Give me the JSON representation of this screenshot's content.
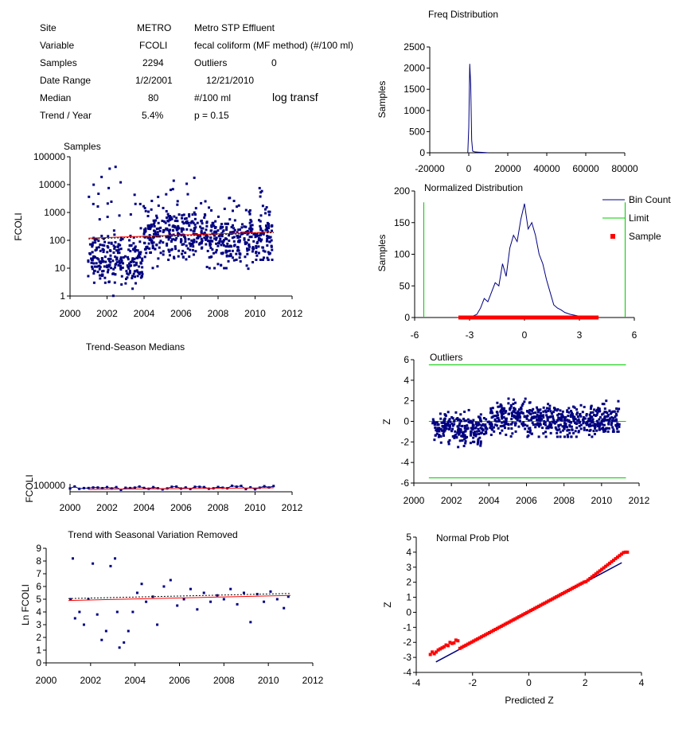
{
  "summary": {
    "site_label": "Site",
    "site_code": "METRO",
    "site_name": "Metro STP Effluent",
    "variable_label": "Variable",
    "variable_code": "FCOLI",
    "variable_name": "fecal coliform (MF method) (#/100 ml)",
    "samples_label": "Samples",
    "samples_value": "2294",
    "outliers_label": "Outliers",
    "outliers_value": "0",
    "date_range_label": "Date Range",
    "date_start": "1/2/2001",
    "date_end": "12/21/2010",
    "median_label": "Median",
    "median_value": "80",
    "median_unit": "#/100 ml",
    "transform_note": "log transf",
    "trend_label": "Trend / Year",
    "trend_value": "5.4%",
    "p_value": "p = 0.15"
  },
  "colors": {
    "data": "#000080",
    "trend": "#ff0000",
    "limit": "#00cc00",
    "sample": "#ff0000"
  },
  "chart_data": [
    {
      "id": "samples",
      "type": "scatter",
      "title": "Samples",
      "ylabel": "FCOLI",
      "y_scale": "log",
      "ylim": [
        1,
        100000
      ],
      "xlim": [
        2000,
        2012
      ],
      "xticks": [
        "2000",
        "2002",
        "2004",
        "2006",
        "2008",
        "2010",
        "2012"
      ],
      "yticks": [
        "1",
        "10",
        "100",
        "1000",
        "10000",
        "100000"
      ],
      "year_clusters": [
        {
          "year": 2001,
          "median": 25,
          "min": 3,
          "max": 20000
        },
        {
          "year": 2002,
          "median": 20,
          "min": 1,
          "max": 60000
        },
        {
          "year": 2003,
          "median": 15,
          "min": 1,
          "max": 60000
        },
        {
          "year": 2004,
          "median": 120,
          "min": 10,
          "max": 5000
        },
        {
          "year": 2005,
          "median": 200,
          "min": 20,
          "max": 20000
        },
        {
          "year": 2006,
          "median": 150,
          "min": 10,
          "max": 60000
        },
        {
          "year": 2007,
          "median": 110,
          "min": 10,
          "max": 3000
        },
        {
          "year": 2008,
          "median": 110,
          "min": 10,
          "max": 5000
        },
        {
          "year": 2009,
          "median": 90,
          "min": 5,
          "max": 2000
        },
        {
          "year": 2010,
          "median": 110,
          "min": 20,
          "max": 10000
        }
      ],
      "trend_line": {
        "x": [
          2001,
          2011
        ],
        "y": [
          120,
          200
        ]
      }
    },
    {
      "id": "freq",
      "type": "line",
      "title": "Freq Distribution",
      "ylabel": "Samples",
      "xlim": [
        -20000,
        80000
      ],
      "ylim": [
        0,
        2500
      ],
      "xticks": [
        "-20000",
        "0",
        "20000",
        "40000",
        "60000",
        "80000"
      ],
      "yticks": [
        "0",
        "500",
        "1000",
        "1500",
        "2000",
        "2500"
      ],
      "x": [
        -500,
        0,
        500,
        1000,
        1500,
        2000,
        3000,
        5000,
        7000,
        10000
      ],
      "y": [
        0,
        600,
        2100,
        1600,
        300,
        40,
        20,
        15,
        10,
        0
      ]
    },
    {
      "id": "normalized",
      "type": "line",
      "title": "Normalized Distribution",
      "ylabel": "Samples",
      "xlim": [
        -6,
        6
      ],
      "ylim": [
        0,
        200
      ],
      "xticks": [
        "-6",
        "-3",
        "0",
        "3",
        "6"
      ],
      "yticks": [
        "0",
        "50",
        "100",
        "150",
        "200"
      ],
      "legend": [
        "Bin Count",
        "Limit",
        "Sample"
      ],
      "bin_x": [
        -3.0,
        -2.6,
        -2.4,
        -2.2,
        -2.0,
        -1.8,
        -1.6,
        -1.4,
        -1.2,
        -1.0,
        -0.8,
        -0.6,
        -0.4,
        -0.2,
        0.0,
        0.1,
        0.2,
        0.4,
        0.6,
        0.8,
        1.0,
        1.2,
        1.4,
        1.6,
        1.8,
        2.0,
        2.2,
        2.5,
        3.0,
        3.5
      ],
      "bin_y": [
        0,
        5,
        15,
        30,
        25,
        40,
        55,
        50,
        85,
        65,
        110,
        130,
        120,
        155,
        180,
        160,
        140,
        150,
        130,
        100,
        85,
        60,
        40,
        20,
        15,
        12,
        8,
        5,
        2,
        0
      ],
      "limits": [
        -5.5,
        5.5
      ],
      "sample_range": [
        -3.5,
        4.0
      ]
    },
    {
      "id": "trend-season",
      "type": "line",
      "title": "Trend-Season Medians",
      "ylabel": "FCOLI",
      "xlim": [
        2000,
        2012
      ],
      "yticks": [
        "100000"
      ],
      "xticks": [
        "2000",
        "2002",
        "2004",
        "2006",
        "2008",
        "2010",
        "2012"
      ]
    },
    {
      "id": "outliers",
      "type": "scatter",
      "title": "Outliers",
      "ylabel": "Z",
      "xlim": [
        2000,
        2012
      ],
      "ylim": [
        -6,
        6
      ],
      "xticks": [
        "2000",
        "2002",
        "2004",
        "2006",
        "2008",
        "2010",
        "2012"
      ],
      "yticks": [
        "-6",
        "-4",
        "-2",
        "0",
        "2",
        "4",
        "6"
      ],
      "limits": [
        -5.5,
        5.5
      ],
      "year_clusters": [
        {
          "year": 2001,
          "median": -0.5,
          "min": -2.2,
          "max": 2.0
        },
        {
          "year": 2002,
          "median": -0.7,
          "min": -2.5,
          "max": 2.5
        },
        {
          "year": 2003,
          "median": -1.0,
          "min": -3.4,
          "max": 2.5
        },
        {
          "year": 2004,
          "median": 0.2,
          "min": -1.5,
          "max": 2.0
        },
        {
          "year": 2005,
          "median": 0.5,
          "min": -1.5,
          "max": 3.0
        },
        {
          "year": 2006,
          "median": 0.2,
          "min": -1.5,
          "max": 4.0
        },
        {
          "year": 2007,
          "median": 0.0,
          "min": -1.5,
          "max": 2.0
        },
        {
          "year": 2008,
          "median": 0.0,
          "min": -1.5,
          "max": 2.0
        },
        {
          "year": 2009,
          "median": 0.0,
          "min": -1.5,
          "max": 1.5
        },
        {
          "year": 2010,
          "median": 0.2,
          "min": -1.0,
          "max": 2.0
        }
      ]
    },
    {
      "id": "trend-removed",
      "type": "scatter",
      "title": "Trend with Seasonal Variation Removed",
      "ylabel": "Ln FCOLI",
      "xlim": [
        2000,
        2012
      ],
      "ylim": [
        0,
        9
      ],
      "xticks": [
        "2000",
        "2002",
        "2004",
        "2006",
        "2008",
        "2010",
        "2012"
      ],
      "yticks": [
        "0",
        "1",
        "2",
        "3",
        "4",
        "5",
        "6",
        "7",
        "8",
        "9"
      ],
      "x": [
        2001.1,
        2001.2,
        2001.3,
        2001.5,
        2001.7,
        2001.9,
        2002.1,
        2002.3,
        2002.5,
        2002.7,
        2002.9,
        2003.1,
        2003.2,
        2003.3,
        2003.5,
        2003.7,
        2003.9,
        2004.1,
        2004.3,
        2004.5,
        2004.8,
        2005.0,
        2005.3,
        2005.6,
        2005.9,
        2006.2,
        2006.5,
        2006.8,
        2007.1,
        2007.4,
        2007.7,
        2008.0,
        2008.3,
        2008.6,
        2008.9,
        2009.2,
        2009.5,
        2009.8,
        2010.1,
        2010.4,
        2010.7,
        2010.9
      ],
      "y": [
        5.0,
        8.2,
        3.5,
        4.0,
        3.0,
        5.0,
        7.8,
        3.8,
        1.8,
        2.5,
        7.6,
        8.2,
        4.0,
        1.2,
        1.6,
        2.5,
        4.0,
        5.5,
        6.2,
        4.8,
        5.2,
        3.0,
        6.0,
        6.5,
        4.5,
        5.0,
        5.8,
        4.2,
        5.5,
        4.8,
        5.3,
        5.0,
        5.8,
        4.6,
        5.5,
        3.2,
        5.4,
        4.8,
        5.6,
        5.0,
        4.3,
        5.2
      ],
      "trend_line": {
        "x": [
          2001,
          2011
        ],
        "y": [
          4.9,
          5.3
        ]
      }
    },
    {
      "id": "normal-prob",
      "type": "scatter",
      "title": "Normal Prob Plot",
      "xlabel": "Predicted Z",
      "ylabel": "Z",
      "xlim": [
        -4,
        4
      ],
      "ylim": [
        -4,
        5
      ],
      "xticks": [
        "-4",
        "-2",
        "0",
        "2",
        "4"
      ],
      "yticks": [
        "-4",
        "-3",
        "-2",
        "-1",
        "0",
        "1",
        "2",
        "3",
        "4",
        "5"
      ]
    }
  ]
}
